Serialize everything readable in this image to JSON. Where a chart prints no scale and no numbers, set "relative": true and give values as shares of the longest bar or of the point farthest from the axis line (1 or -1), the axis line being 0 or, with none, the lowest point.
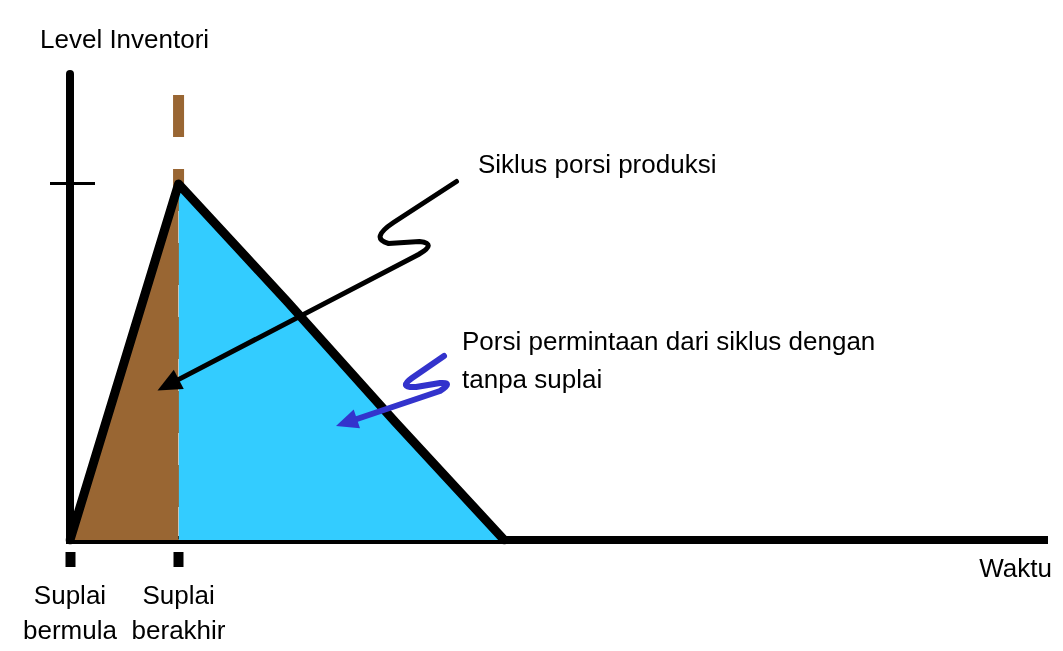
{
  "chart_data": {
    "type": "area",
    "relative": true,
    "xlabel": "Waktu",
    "ylabel": "Level Inventori",
    "categories": [
      "Suplai bermula",
      "Suplai berakhir",
      null,
      null,
      null,
      null,
      null,
      null,
      null,
      null
    ],
    "series": [
      {
        "color": "#996633",
        "values": [
          0,
          1,
          null,
          null,
          null,
          null,
          null,
          null,
          null,
          null
        ]
      },
      {
        "color": "#33ccff",
        "values": [
          null,
          1,
          0.67,
          0.33,
          0,
          null,
          null,
          null,
          null,
          null
        ]
      },
      {
        "type": "line",
        "color": "#000000",
        "values": [
          0,
          1,
          0.67,
          0.33,
          0,
          null,
          null,
          null,
          null,
          null
        ]
      }
    ],
    "ref_lines": [
      {
        "axis": "x",
        "value": "Suplai berakhir",
        "color": "#996633",
        "line_style": "dashed"
      }
    ],
    "annotations": [
      "Siklus porsi produksi",
      "Porsi permintaan dari siklus dengan tanpa suplai"
    ]
  }
}
